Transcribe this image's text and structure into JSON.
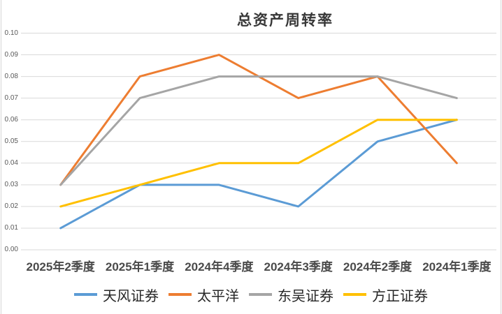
{
  "chart_data": {
    "type": "line",
    "title": "总资产周转率",
    "categories": [
      "2025年2季度",
      "2025年1季度",
      "2024年4季度",
      "2024年3季度",
      "2024年2季度",
      "2024年1季度"
    ],
    "series": [
      {
        "name": "天风证券",
        "color": "#5B9BD5",
        "values": [
          0.01,
          0.03,
          0.03,
          0.02,
          0.05,
          0.06
        ]
      },
      {
        "name": "太平洋",
        "color": "#ED7D31",
        "values": [
          0.03,
          0.08,
          0.09,
          0.07,
          0.08,
          0.04
        ]
      },
      {
        "name": "东吴证券",
        "color": "#A5A5A5",
        "values": [
          0.03,
          0.07,
          0.08,
          0.08,
          0.08,
          0.07
        ]
      },
      {
        "name": "方正证券",
        "color": "#FFC000",
        "values": [
          0.02,
          0.03,
          0.04,
          0.04,
          0.06,
          0.06
        ]
      }
    ],
    "ylim": [
      0,
      0.1
    ],
    "y_ticks": [
      "0.00",
      "0.01",
      "0.02",
      "0.03",
      "0.04",
      "0.05",
      "0.06",
      "0.07",
      "0.08",
      "0.09",
      "0.10"
    ],
    "xlabel": "",
    "ylabel": "",
    "grid": true,
    "legend_position": "bottom",
    "colors": {
      "gridline": "#D9D9D9",
      "chart_border": "#D6D6D6",
      "y_label": "#595959",
      "x_label": "#4A4A4A",
      "title": "#383838",
      "legend_text": "#262626",
      "background": "#FFFFFF"
    }
  }
}
